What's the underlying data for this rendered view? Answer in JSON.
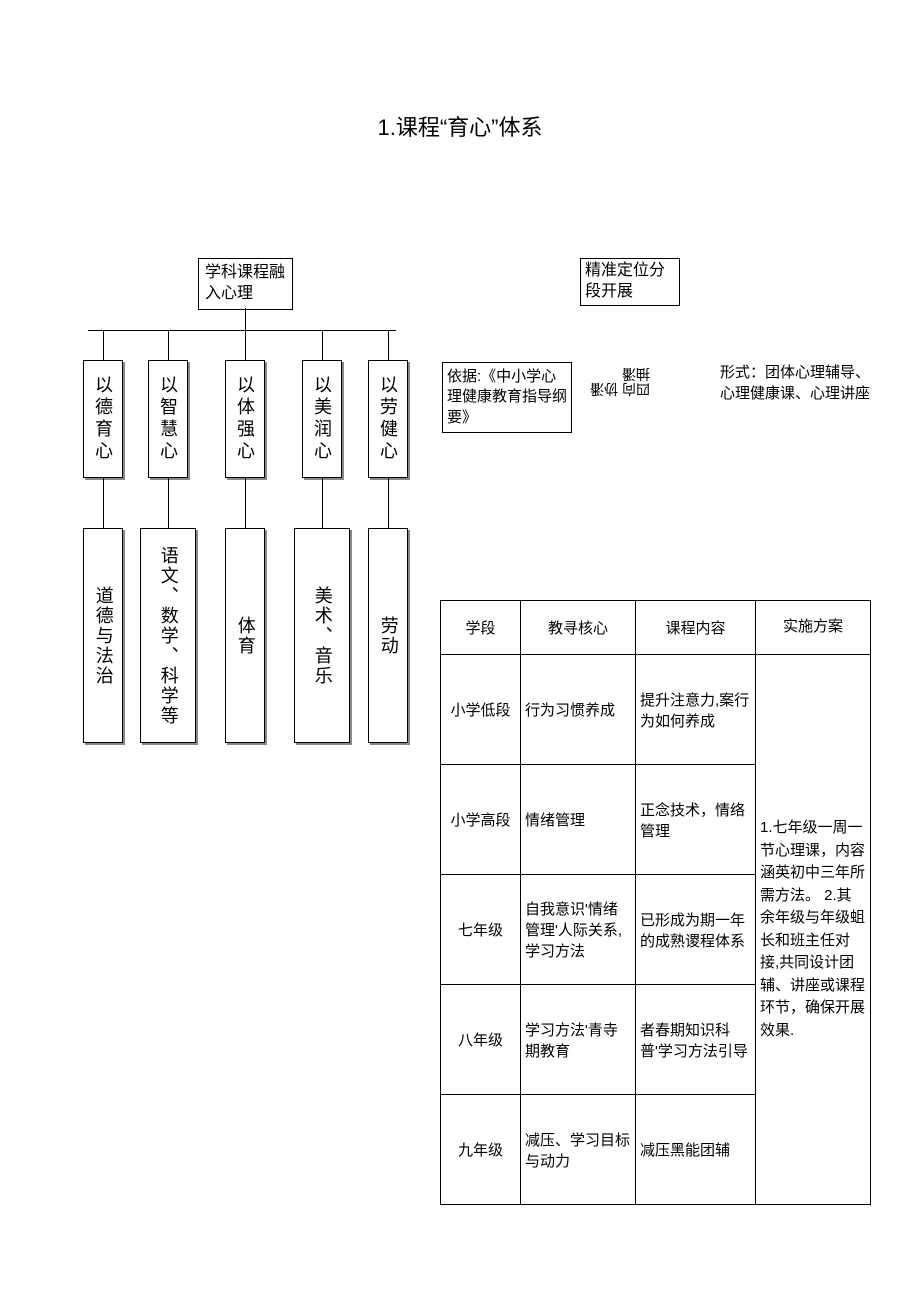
{
  "title": "1.课程“育心”体系",
  "flowchart": {
    "root_left": "学科课程融入心理",
    "root_right": "精准定位分段开展",
    "mids": [
      "以德育心",
      "以智慧心",
      "以体强心",
      "以美润心",
      "以劳健心"
    ],
    "bottoms": [
      "道德与法治",
      "语文、数学、科学等",
      "体育",
      "美术、音乐",
      "劳动"
    ]
  },
  "info": {
    "basis": "依据:《中小学心理健康教育指导纲要》",
    "rotated": "四向\n协潘\n抽潘",
    "form": "形式：团体心理辅导、心理健康课、心理讲座"
  },
  "table": {
    "headers": [
      "学段",
      "教寻核心",
      "课程内容",
      "实施方案"
    ],
    "rows": [
      {
        "stage": "小学低段",
        "core": "行为习惯养成",
        "content": "提升注意力,案行为如何养成"
      },
      {
        "stage": "小学高段",
        "core": "情绪管理",
        "content": "正念技术，情络管理"
      },
      {
        "stage": "七年级",
        "core": "自我意识'情绪管理'人际关系,学习方法",
        "content": "已形成为期一年的成熟谡程体系"
      },
      {
        "stage": "八年级",
        "core": "学习方法'青寺期教育",
        "content": "者春期知识科普'学习方法引导"
      },
      {
        "stage": "九年级",
        "core": "减压、学习目标与动力",
        "content": "减压黑能团辅"
      }
    ],
    "plan": "1.七年级一周一节心理课，内容涵英初中三年所需方法。\n2.其余年级与年级蛆长和班主任对接,共同设计团辅、讲座或课程环节，确保开展效果."
  },
  "style": {
    "page_bg": "#ffffff",
    "text_color": "#000000",
    "border_color": "#000000",
    "shadow_color": "#888888",
    "title_fontsize": 22,
    "body_fontsize": 16,
    "table_fontsize": 15
  }
}
